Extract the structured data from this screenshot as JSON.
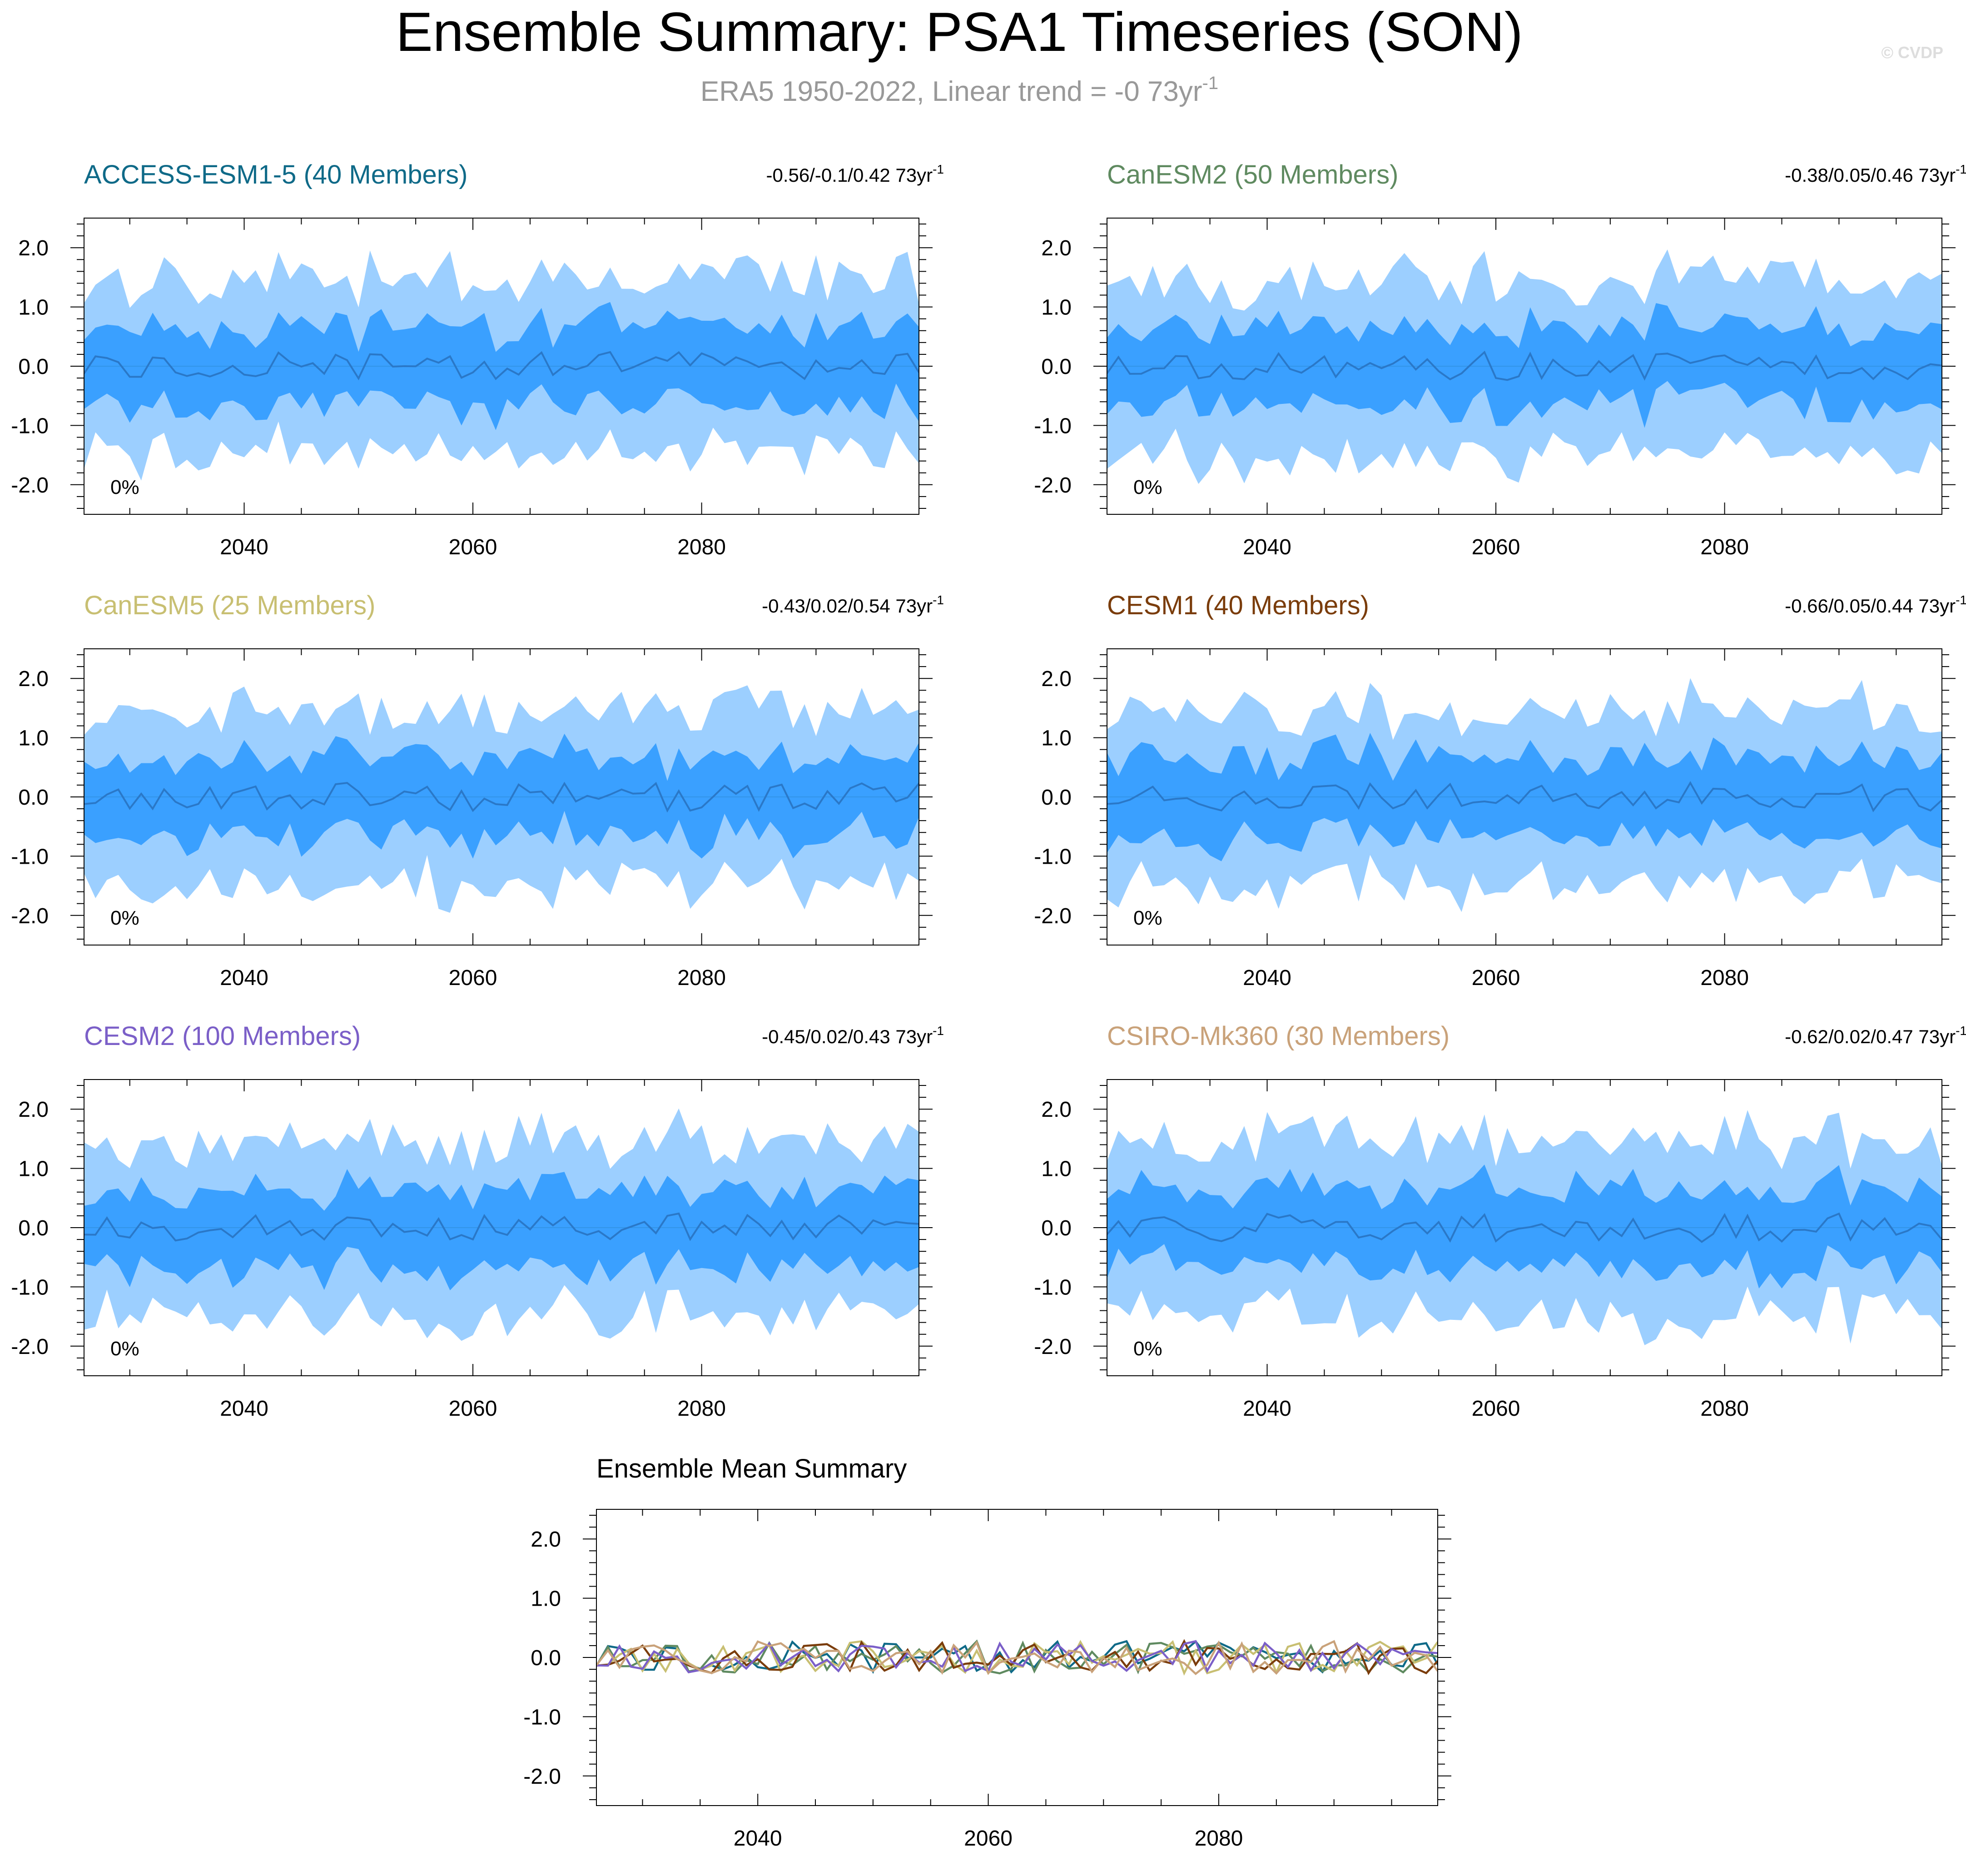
{
  "title": "Ensemble Summary: PSA1 Timeseries (SON)",
  "subtitle": {
    "text": "ERA5 1950-2022, Linear trend = -0 73yr",
    "superscript": "-1"
  },
  "copyright": "© CVDP",
  "colors": {
    "outer_band": "#9ccfff",
    "inner_band": "#3aa0ff",
    "mean_line": "#2a78c8",
    "axis": "#000000",
    "subtitle": "#999999",
    "copyright": "#dddddd"
  },
  "panels": [
    {
      "title": "ACCESS-ESM1-5 (40 Members)",
      "title_color": "#0f6a88",
      "trend": "-0.56/-0.1/0.42 73yr",
      "trend_sup": "-1",
      "pct_label": "0%",
      "seed": 11
    },
    {
      "title": "CanESM2 (50 Members)",
      "title_color": "#5f8a60",
      "trend": "-0.38/0.05/0.46 73yr",
      "trend_sup": "-1",
      "pct_label": "0%",
      "seed": 23
    },
    {
      "title": "CanESM5 (25 Members)",
      "title_color": "#c8bf72",
      "trend": "-0.43/0.02/0.54 73yr",
      "trend_sup": "-1",
      "pct_label": "0%",
      "seed": 37
    },
    {
      "title": "CESM1 (40 Members)",
      "title_color": "#7a3c0a",
      "trend": "-0.66/0.05/0.44 73yr",
      "trend_sup": "-1",
      "pct_label": "0%",
      "seed": 41
    },
    {
      "title": "CESM2 (100 Members)",
      "title_color": "#7b5fc8",
      "trend": "-0.45/0.02/0.43 73yr",
      "trend_sup": "-1",
      "pct_label": "0%",
      "seed": 53
    },
    {
      "title": "CSIRO-Mk360 (30 Members)",
      "title_color": "#c9a27a",
      "trend": "-0.62/0.02/0.47 73yr",
      "trend_sup": "-1",
      "pct_label": "0%",
      "seed": 67
    }
  ],
  "mean_panel": {
    "title": "Ensemble Mean Summary"
  },
  "chart_data": {
    "type": "area",
    "x_range": [
      2026,
      2099
    ],
    "ylim": [
      -2.5,
      2.5
    ],
    "xticks": [
      2040,
      2060,
      2080
    ],
    "xtick_labels": [
      "2040",
      "2060",
      "2080"
    ],
    "yticks": [
      2,
      1,
      0,
      -1,
      -2
    ],
    "ytick_labels": [
      "2.0",
      "1.0",
      "0.0",
      "-1.0",
      "-2.0"
    ],
    "description": "Each model panel shows ensemble min-max (outer band), 10th-90th percentile (inner band) and ensemble mean line of the PSA1 principal component for 2026-2099; values fluctuate roughly between -2 and +2 around zero.",
    "band_magnitude": {
      "outer_typical": 1.2,
      "inner_typical": 0.6,
      "mean_typical": 0.15
    }
  }
}
